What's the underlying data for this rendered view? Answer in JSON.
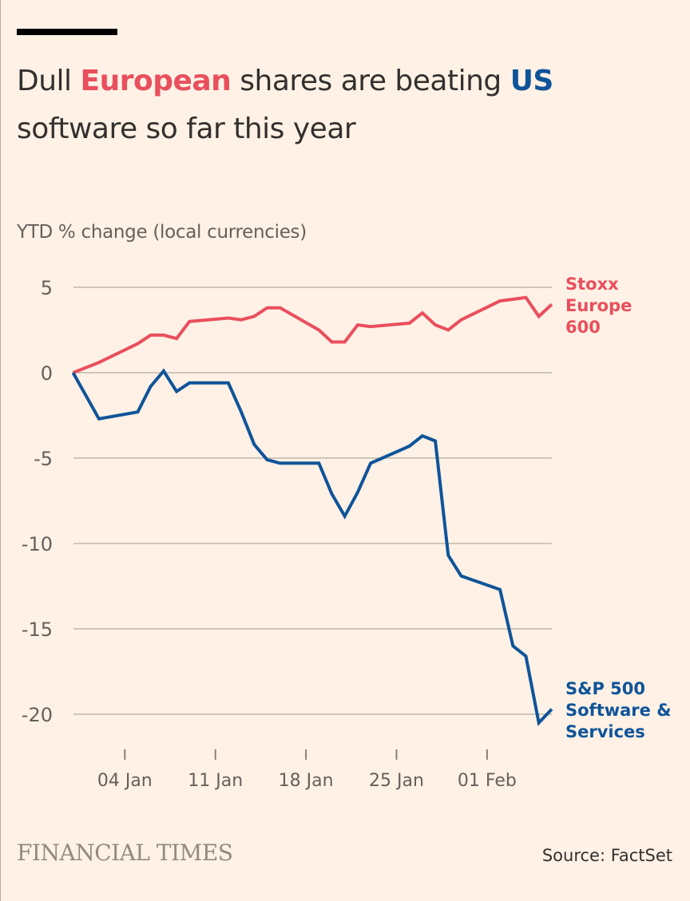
{
  "header": {
    "title_parts": [
      "Dull ",
      "European",
      " shares are beating ",
      "US",
      " software so far this year"
    ],
    "subtitle": "YTD % change (local currencies)"
  },
  "footer": {
    "brand": "FINANCIAL TIMES",
    "source": "Source: FactSet"
  },
  "colors": {
    "europe": "#e94f5d",
    "us": "#0f5499",
    "grid": "#cec6b9",
    "text": "#66605c"
  },
  "chart_data": {
    "type": "line",
    "title": "Dull European shares are beating US software so far this year",
    "ylabel": "YTD % change (local currencies)",
    "xlabel": "",
    "ylim": [
      -22.5,
      5
    ],
    "yticks": [
      5,
      0,
      -5,
      -10,
      -15,
      -20
    ],
    "xticks": [
      {
        "day": 4,
        "label": "04 Jan"
      },
      {
        "day": 11,
        "label": "11 Jan"
      },
      {
        "day": 18,
        "label": "18 Jan"
      },
      {
        "day": 25,
        "label": "25 Jan"
      },
      {
        "day": 32,
        "label": "01 Feb"
      }
    ],
    "xlim_days": [
      0,
      37
    ],
    "grid": true,
    "x_days": [
      0,
      2,
      5,
      6,
      7,
      8,
      9,
      12,
      13,
      14,
      15,
      16,
      19,
      20,
      21,
      22,
      23,
      26,
      27,
      28,
      29,
      30,
      33,
      34,
      35,
      36,
      37
    ],
    "series": [
      {
        "name": "Stoxx Europe 600",
        "label_lines": [
          "Stoxx",
          "Europe",
          "600"
        ],
        "values": [
          0,
          0.6,
          1.7,
          2.2,
          2.2,
          2.0,
          3.0,
          3.2,
          3.1,
          3.3,
          3.8,
          3.8,
          2.5,
          1.8,
          1.8,
          2.8,
          2.7,
          2.9,
          3.5,
          2.8,
          2.5,
          3.1,
          4.2,
          4.3,
          4.4,
          3.3,
          4.0
        ]
      },
      {
        "name": "S&P 500 Software & Services",
        "label_lines": [
          "S&P 500",
          "Software &",
          "Services"
        ],
        "values": [
          0,
          -2.7,
          -2.3,
          -0.8,
          0.1,
          -1.1,
          -0.6,
          -0.6,
          -2.3,
          -4.2,
          -5.1,
          -5.3,
          -5.3,
          -7.1,
          -8.4,
          -7.0,
          -5.3,
          -4.3,
          -3.7,
          -4.0,
          -10.7,
          -11.9,
          -12.7,
          -16.0,
          -16.6,
          -20.5,
          -19.7
        ]
      }
    ]
  }
}
